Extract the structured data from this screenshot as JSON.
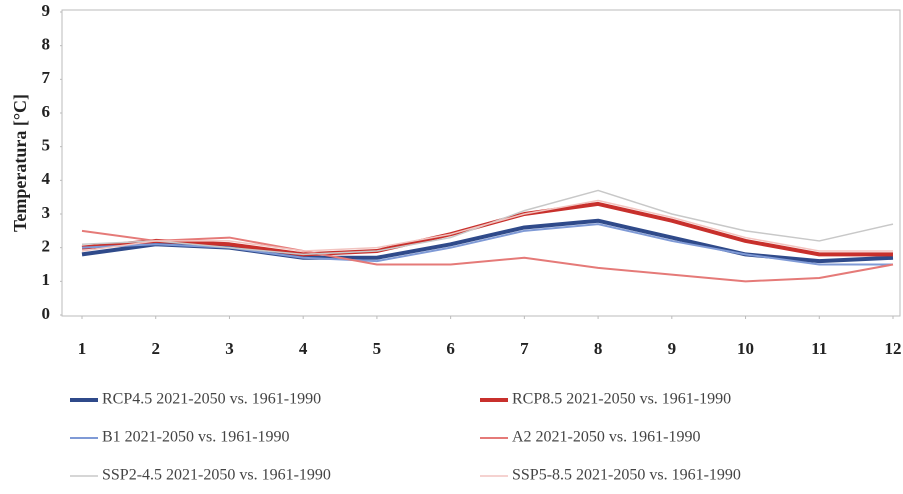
{
  "chart_data": {
    "type": "line",
    "y_label": "Temperatura [°C]",
    "x": [
      1,
      2,
      3,
      4,
      5,
      6,
      7,
      8,
      9,
      10,
      11,
      12
    ],
    "xlim": [
      1,
      12
    ],
    "xticks": [
      1,
      2,
      3,
      4,
      5,
      6,
      7,
      8,
      9,
      10,
      11,
      12
    ],
    "ylim": [
      0,
      9
    ],
    "yticks": [
      0,
      1,
      2,
      3,
      4,
      5,
      6,
      7,
      8,
      9
    ],
    "grid": false,
    "series": [
      {
        "name": "RCP4.5 2021-2050 vs. 1961-1990",
        "color": "#2f4a8a",
        "width": 4,
        "values": [
          1.8,
          2.1,
          2.0,
          1.7,
          1.7,
          2.1,
          2.6,
          2.8,
          2.3,
          1.8,
          1.6,
          1.7
        ]
      },
      {
        "name": "RCP8.5 2021-2050 vs. 1961-1990",
        "color": "#c8302c",
        "width": 4,
        "values": [
          2.0,
          2.2,
          2.1,
          1.8,
          1.9,
          2.4,
          3.0,
          3.3,
          2.8,
          2.2,
          1.8,
          1.8
        ]
      },
      {
        "name": "B1 2021-2050 vs. 1961-1990",
        "color": "#7f9ad6",
        "width": 2,
        "values": [
          2.0,
          2.1,
          2.0,
          1.7,
          1.6,
          2.0,
          2.5,
          2.7,
          2.2,
          1.8,
          1.5,
          1.5
        ]
      },
      {
        "name": "A2 2021-2050 vs. 1961-1990",
        "color": "#e57a78",
        "width": 2,
        "values": [
          2.5,
          2.2,
          2.3,
          1.9,
          1.5,
          1.5,
          1.7,
          1.4,
          1.2,
          1.0,
          1.1,
          1.5
        ]
      },
      {
        "name": "SSP2-4.5 2021-2050 vs. 1961-1990",
        "color": "#c8c8c8",
        "width": 1.5,
        "values": [
          2.1,
          2.2,
          2.0,
          1.8,
          1.9,
          2.3,
          3.1,
          3.7,
          3.0,
          2.5,
          2.2,
          2.7
        ]
      },
      {
        "name": "SSP5-8.5 2021-2050 vs. 1961-1990",
        "color": "#f2c4c0",
        "width": 1.5,
        "values": [
          1.9,
          2.2,
          2.2,
          1.9,
          2.0,
          2.4,
          3.0,
          3.4,
          2.9,
          2.3,
          1.9,
          1.9
        ]
      }
    ]
  }
}
